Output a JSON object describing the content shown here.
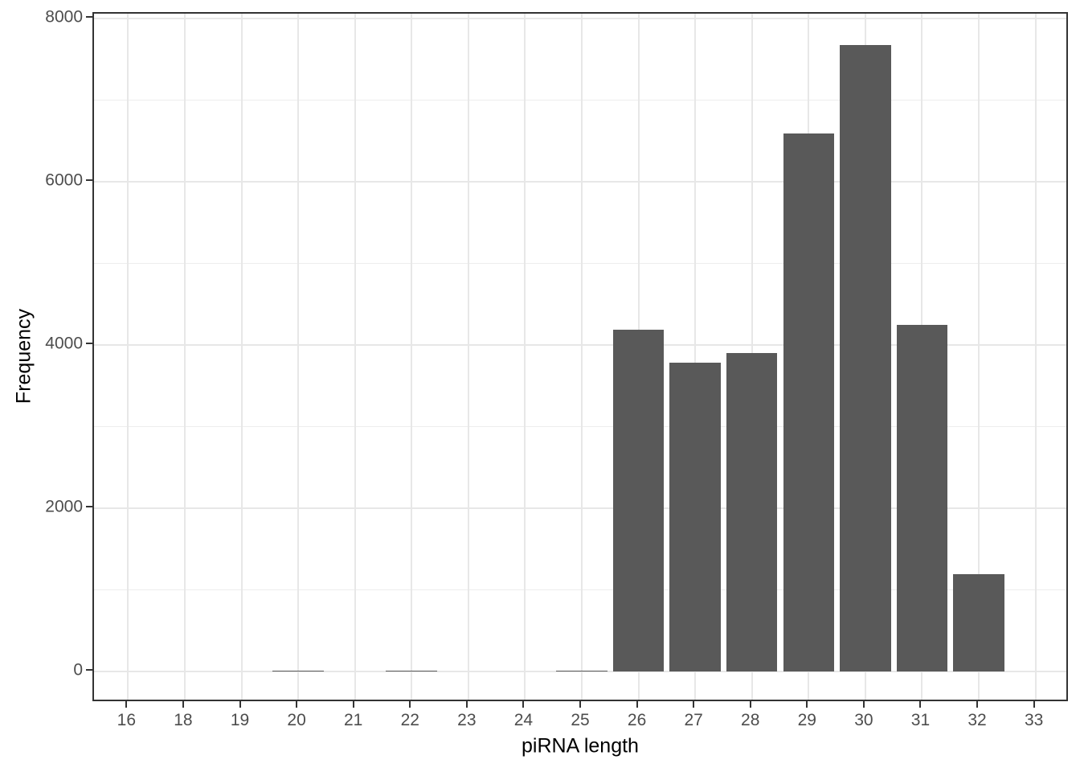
{
  "figure": {
    "kind": "ggplot-style histogram, no title, no legend"
  },
  "chart_data": {
    "type": "bar",
    "title": "",
    "xlabel": "piRNA length",
    "ylabel": "Frequency",
    "categories": [
      "16",
      "18",
      "19",
      "20",
      "21",
      "22",
      "23",
      "24",
      "25",
      "26",
      "27",
      "28",
      "29",
      "30",
      "31",
      "32",
      "33"
    ],
    "values": [
      0,
      0,
      0,
      15,
      0,
      15,
      0,
      0,
      15,
      4190,
      3790,
      3900,
      6600,
      7680,
      4250,
      1190,
      0
    ],
    "y_ticks": [
      0,
      2000,
      4000,
      6000,
      8000
    ],
    "y_minor_ticks": [
      1000,
      3000,
      5000,
      7000
    ],
    "ylim": [
      0,
      8000
    ],
    "grid": "on",
    "legend_position": "none",
    "bar_relative_width": 0.9
  },
  "colors": {
    "background": "#ffffff",
    "bar_fill": "#595959",
    "panel_border": "#333333",
    "grid_major": "#e7e7e7",
    "grid_minor": "#ededed",
    "tick_mark": "#333333",
    "tick_label": "#4d4d4d",
    "axis_title": "#000000"
  }
}
